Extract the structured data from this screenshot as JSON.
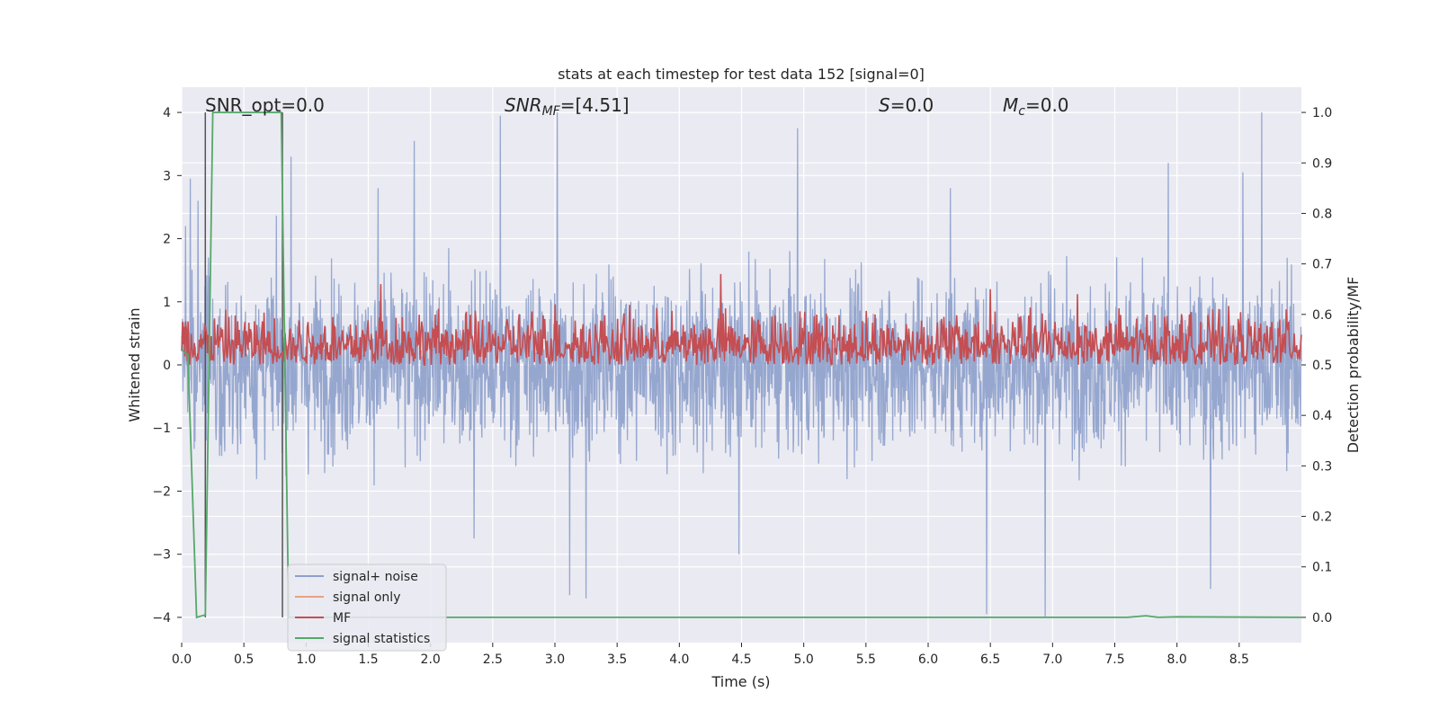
{
  "chart_data": {
    "type": "line",
    "title": "stats at each timestep for test data 152 [signal=0]",
    "xlabel": "Time (s)",
    "ylabel": "Whitened strain",
    "ylabel_right": "Detection probability/MF",
    "xlim": [
      0.0,
      9.0
    ],
    "ylim": [
      -4.4,
      4.4
    ],
    "ylim_right": [
      -0.05,
      1.05
    ],
    "xticks": [
      "0.0",
      "0.5",
      "1.0",
      "1.5",
      "2.0",
      "2.5",
      "3.0",
      "3.5",
      "4.0",
      "4.5",
      "5.0",
      "5.5",
      "6.0",
      "6.5",
      "7.0",
      "7.5",
      "8.0",
      "8.5"
    ],
    "yticks": [
      "4",
      "3",
      "2",
      "1",
      "0",
      "−1",
      "−2",
      "−3",
      "−4"
    ],
    "yticks_right": [
      "1.0",
      "0.9",
      "0.8",
      "0.7",
      "0.6",
      "0.5",
      "0.4",
      "0.3",
      "0.2",
      "0.1",
      "0.0"
    ],
    "grid": true,
    "legend_position": "lower-left",
    "annotations": {
      "snr_opt": "SNR_opt=0.0",
      "snr_mf_name": "SNR",
      "snr_mf_sub": "MF",
      "snr_mf_value": "=[4.51]",
      "s_name": "S",
      "s_value": "=0.0",
      "mc_name": "M",
      "mc_sub": "c",
      "mc_value": "=0.0"
    },
    "series": [
      {
        "name": "signal+ noise",
        "color": "#8da0cb",
        "kind": "noise",
        "amplitude_typical": 1.5,
        "peaks": [
          [
            0.03,
            2.2
          ],
          [
            0.07,
            2.95
          ],
          [
            0.13,
            2.6
          ],
          [
            0.88,
            3.3
          ],
          [
            1.58,
            2.8
          ],
          [
            1.87,
            3.55
          ],
          [
            2.56,
            3.95
          ],
          [
            3.02,
            4.0
          ],
          [
            4.95,
            3.75
          ],
          [
            6.18,
            2.8
          ],
          [
            7.93,
            3.2
          ],
          [
            8.53,
            3.05
          ],
          [
            8.68,
            4.0
          ],
          [
            3.12,
            -3.65
          ],
          [
            3.25,
            -3.7
          ],
          [
            4.48,
            -3.0
          ],
          [
            6.47,
            -3.95
          ],
          [
            6.94,
            -4.0
          ],
          [
            8.27,
            -3.55
          ],
          [
            2.35,
            -2.75
          ]
        ]
      },
      {
        "name": "signal only",
        "color": "#e8a180",
        "values": []
      },
      {
        "name": "MF",
        "color": "#c44e52",
        "kind": "mf",
        "baseline": 0.5,
        "range": [
          0.5,
          0.62
        ],
        "peaks": [
          [
            1.6,
            0.66
          ],
          [
            4.33,
            0.68
          ],
          [
            6.5,
            0.65
          ],
          [
            7.2,
            0.64
          ],
          [
            3.0,
            0.62
          ]
        ]
      },
      {
        "name": "signal statistics",
        "color": "#55a868",
        "x": [
          0.0,
          0.05,
          0.12,
          0.19,
          0.25,
          0.5,
          0.8,
          0.83,
          0.86,
          2.0,
          5.0,
          7.6,
          7.75,
          7.85,
          8.0,
          9.0
        ],
        "y": [
          0.53,
          0.52,
          0.0,
          0.005,
          1.0,
          1.0,
          1.0,
          0.5,
          0.0,
          0.0,
          0.0,
          0.0,
          0.003,
          0.0,
          0.001,
          0.0
        ]
      }
    ],
    "vlines": [
      0.19,
      0.81
    ]
  }
}
